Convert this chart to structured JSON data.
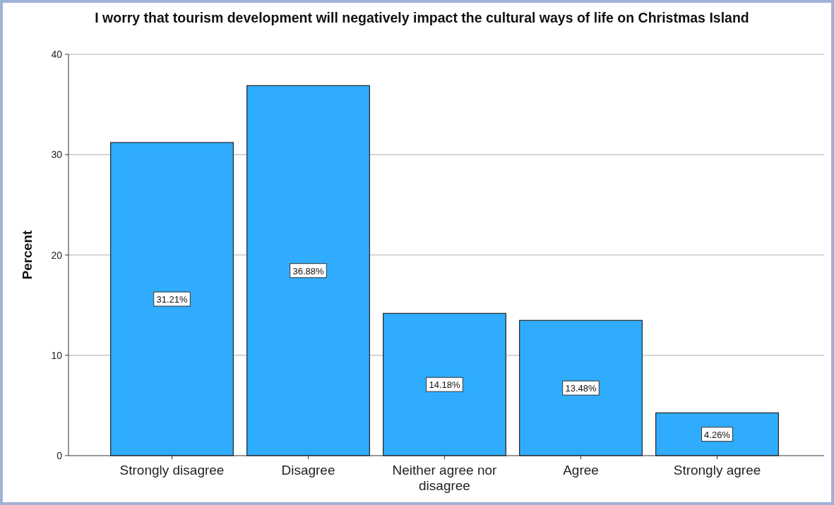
{
  "chart_data": {
    "type": "bar",
    "title": "I worry that tourism development will negatively impact the cultural ways of life on Christmas Island",
    "ylabel": "Percent",
    "categories": [
      "Strongly disagree",
      "Disagree",
      "Neither agree nor disagree",
      "Agree",
      "Strongly agree"
    ],
    "values": [
      31.21,
      36.88,
      14.18,
      13.48,
      4.26
    ],
    "value_labels": [
      "31.21%",
      "36.88%",
      "14.18%",
      "13.48%",
      "4.26%"
    ],
    "color": "#30acfe",
    "ylim": [
      0,
      40
    ],
    "yticks": [
      0,
      10,
      20,
      30,
      40
    ],
    "grid": "y"
  }
}
